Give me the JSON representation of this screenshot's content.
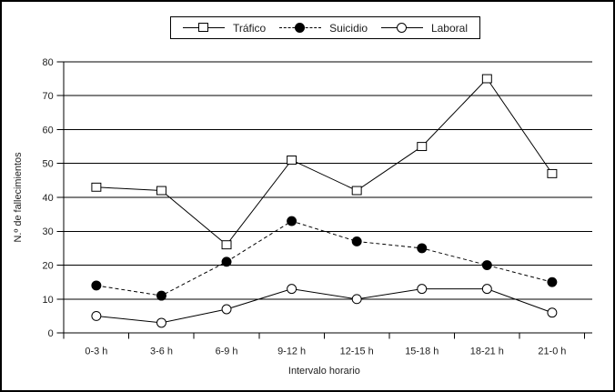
{
  "chart_data": {
    "type": "line",
    "title": "",
    "xlabel": "Intervalo horario",
    "ylabel": "N.º de fallecimientos",
    "categories": [
      "0-3 h",
      "3-6 h",
      "6-9 h",
      "9-12 h",
      "12-15 h",
      "15-18 h",
      "18-21 h",
      "21-0 h"
    ],
    "series": [
      {
        "name": "Tráfico",
        "values": [
          43,
          42,
          26,
          51,
          42,
          55,
          75,
          47
        ],
        "line_style": "solid",
        "marker": "open-square"
      },
      {
        "name": "Suicidio",
        "values": [
          14,
          11,
          21,
          33,
          27,
          25,
          20,
          15
        ],
        "line_style": "dashed",
        "marker": "filled-circle"
      },
      {
        "name": "Laboral",
        "values": [
          5,
          3,
          7,
          13,
          10,
          13,
          13,
          6
        ],
        "line_style": "solid",
        "marker": "open-circle"
      }
    ],
    "ylim": [
      0,
      80
    ],
    "yticks": [
      0,
      10,
      20,
      30,
      40,
      50,
      60,
      70,
      80
    ],
    "grid": true,
    "legend_position": "top-center",
    "colors": {
      "foreground": "#000000",
      "background": "#ffffff",
      "text": "#1c1c1c"
    }
  }
}
